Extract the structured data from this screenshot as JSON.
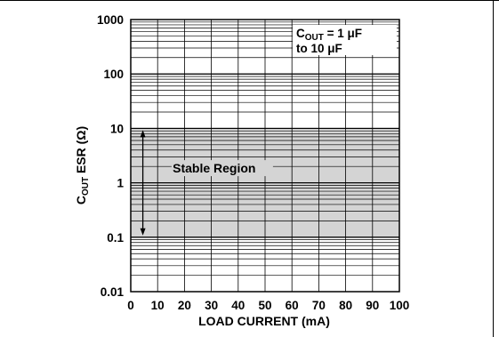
{
  "chart_data": {
    "type": "area",
    "title": "",
    "xlabel": "LOAD CURRENT (mA)",
    "ylabel": {
      "main": "C",
      "sub": "OUT",
      "rest": " ESR (Ω)"
    },
    "x_axis": {
      "lim": [
        0,
        100
      ],
      "ticks": [
        0,
        10,
        20,
        30,
        40,
        50,
        60,
        70,
        80,
        90,
        100
      ],
      "tick_labels": [
        "0",
        "10",
        "20",
        "30",
        "40",
        "50",
        "60",
        "70",
        "80",
        "90",
        "100"
      ],
      "grid": true
    },
    "y_axis": {
      "scale": "log",
      "lim": [
        0.01,
        1000
      ],
      "ticks": [
        0.01,
        0.1,
        1,
        10,
        100,
        1000
      ],
      "tick_labels": [
        "0.01",
        "0.1",
        "1",
        "10",
        "100",
        "1000"
      ],
      "grid": true,
      "minor_grid": true
    },
    "regions": [
      {
        "label": "Stable Region",
        "x": [
          0,
          100
        ],
        "y": [
          0.1,
          10
        ],
        "color": "#d4d4d4"
      }
    ],
    "annotation": {
      "line1_main": "C",
      "line1_sub": "OUT",
      "line1_rest": " = 1 μF",
      "line2": "to 10 μF"
    }
  }
}
